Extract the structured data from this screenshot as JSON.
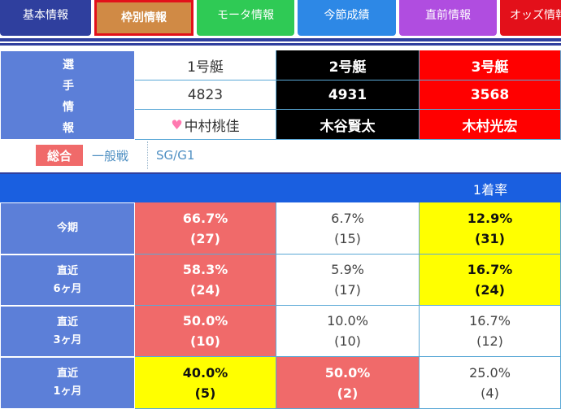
{
  "colors": {
    "tab_basic": "#2f3f9e",
    "tab_frame": "#d08a45",
    "tab_motor": "#2fca55",
    "tab_session": "#2d88e6",
    "tab_pre": "#b04de0",
    "tab_odds": "#e3101a",
    "highlight_red": "#f06a6a",
    "highlight_yellow": "#ffff00",
    "label_blue": "#5c7fd8",
    "header_blue": "#1a5fe0"
  },
  "tabs": [
    {
      "label": "基本情報"
    },
    {
      "label": "枠別情報"
    },
    {
      "label": "モータ情報"
    },
    {
      "label": "今節成績"
    },
    {
      "label": "直前情報"
    },
    {
      "label": "オッズ情報"
    }
  ],
  "racer_info": {
    "label_chars": [
      "選",
      "手",
      "情",
      "報"
    ],
    "boats": [
      {
        "boat": "1号艇",
        "id": "4823",
        "name": "中村桃佳",
        "icon": "heart-icon"
      },
      {
        "boat": "2号艇",
        "id": "4931",
        "name": "木谷賢太"
      },
      {
        "boat": "3号艇",
        "id": "3568",
        "name": "木村光宏"
      }
    ]
  },
  "filter": {
    "active": "総合",
    "options": [
      "一般戦",
      "SG/G1"
    ]
  },
  "stats": {
    "header": "1着率",
    "rows": [
      {
        "label": [
          "今期"
        ],
        "cells": [
          {
            "rate": "66.7%",
            "count": "(27)",
            "style": "red"
          },
          {
            "rate": "6.7%",
            "count": "(15)",
            "style": "white"
          },
          {
            "rate": "12.9%",
            "count": "(31)",
            "style": "yellow"
          }
        ]
      },
      {
        "label": [
          "直近",
          "6ヶ月"
        ],
        "cells": [
          {
            "rate": "58.3%",
            "count": "(24)",
            "style": "red"
          },
          {
            "rate": "5.9%",
            "count": "(17)",
            "style": "white"
          },
          {
            "rate": "16.7%",
            "count": "(24)",
            "style": "yellow"
          }
        ]
      },
      {
        "label": [
          "直近",
          "3ヶ月"
        ],
        "cells": [
          {
            "rate": "50.0%",
            "count": "(10)",
            "style": "red"
          },
          {
            "rate": "10.0%",
            "count": "(10)",
            "style": "white"
          },
          {
            "rate": "16.7%",
            "count": "(12)",
            "style": "white"
          }
        ]
      },
      {
        "label": [
          "直近",
          "1ヶ月"
        ],
        "cells": [
          {
            "rate": "40.0%",
            "count": "(5)",
            "style": "yellow"
          },
          {
            "rate": "50.0%",
            "count": "(2)",
            "style": "red"
          },
          {
            "rate": "25.0%",
            "count": "(4)",
            "style": "white"
          }
        ]
      }
    ]
  }
}
